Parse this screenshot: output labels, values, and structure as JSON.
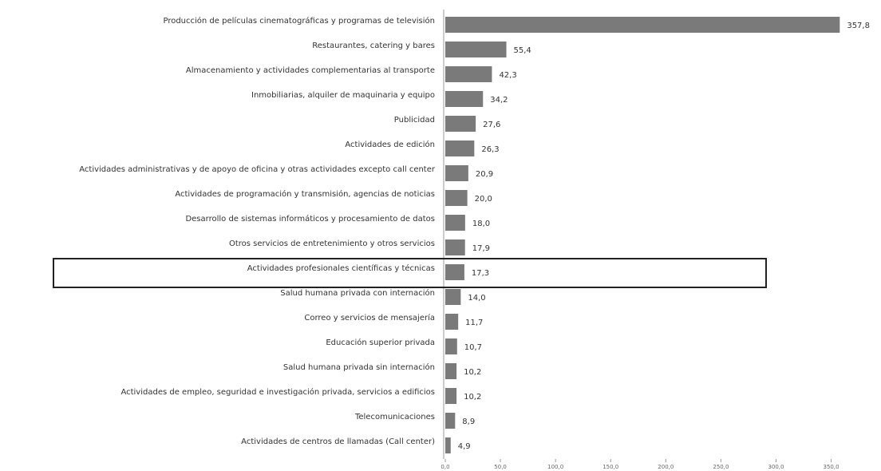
{
  "chart_data": {
    "type": "bar",
    "orientation": "horizontal",
    "color": "#7a7a7a",
    "categories": [
      "Producción de películas cinematográficas y programas de televisión",
      "Restaurantes, catering y bares",
      "Almacenamiento y actividades complementarias al transporte",
      "Inmobiliarias, alquiler de maquinaria y equipo",
      "Publicidad",
      "Actividades de edición",
      "Actividades administrativas y de apoyo de oficina y otras actividades excepto call center",
      "Actividades de programación y transmisión, agencias de noticias",
      "Desarrollo de sistemas informáticos y procesamiento de datos",
      "Otros servicios de entretenimiento y otros servicios",
      "Actividades profesionales científicas y técnicas",
      "Salud humana privada con internación",
      "Correo y servicios de mensajería",
      "Educación superior privada",
      "Salud humana privada sin internación",
      "Actividades de empleo, seguridad e investigación privada, servicios a edificios",
      "Telecomunicaciones",
      "Actividades de centros de llamadas (Call center)"
    ],
    "values": [
      357.8,
      55.4,
      42.3,
      34.2,
      27.6,
      26.3,
      20.9,
      20.0,
      18.0,
      17.9,
      17.3,
      14.0,
      11.7,
      10.7,
      10.2,
      10.2,
      8.9,
      4.9
    ],
    "value_labels": [
      "357,8",
      "55,4",
      "42,3",
      "34,2",
      "27,6",
      "26,3",
      "20,9",
      "20,0",
      "18,0",
      "17,9",
      "17,3",
      "14,0",
      "11,7",
      "10,7",
      "10,2",
      "10,2",
      "8,9",
      "4,9"
    ],
    "xlim": [
      0,
      380
    ],
    "xticks": [
      {
        "value": 0,
        "label": "0,0"
      },
      {
        "value": 50,
        "label": "50,0"
      },
      {
        "value": 100,
        "label": "100,0"
      },
      {
        "value": 150,
        "label": "150,0"
      },
      {
        "value": 200,
        "label": "200,0"
      },
      {
        "value": 250,
        "label": "250,0"
      },
      {
        "value": 300,
        "label": "300,0"
      },
      {
        "value": 350,
        "label": "350,0"
      }
    ],
    "highlight_index": 10
  }
}
